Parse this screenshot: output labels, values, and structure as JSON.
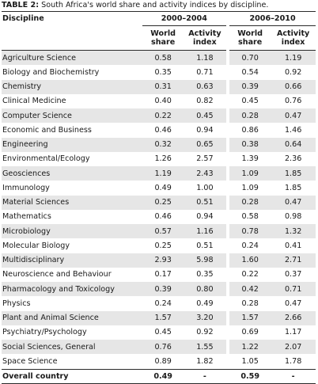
{
  "caption": {
    "label": "TABLE 2:",
    "text": " South Africa's world share and activity indices by discipline."
  },
  "header": {
    "discipline": "Discipline",
    "period1": "2000–2004",
    "period2": "2006–2010",
    "world_share": "World share",
    "activity_index": "Activity index"
  },
  "rows": [
    {
      "discipline": "Agriculture Science",
      "ws1": "0.58",
      "ai1": "1.18",
      "ws2": "0.70",
      "ai2": "1.19"
    },
    {
      "discipline": "Biology and Biochemistry",
      "ws1": "0.35",
      "ai1": "0.71",
      "ws2": "0.54",
      "ai2": "0.92"
    },
    {
      "discipline": "Chemistry",
      "ws1": "0.31",
      "ai1": "0.63",
      "ws2": "0.39",
      "ai2": "0.66"
    },
    {
      "discipline": "Clinical Medicine",
      "ws1": "0.40",
      "ai1": "0.82",
      "ws2": "0.45",
      "ai2": "0.76"
    },
    {
      "discipline": "Computer Science",
      "ws1": "0.22",
      "ai1": "0.45",
      "ws2": "0.28",
      "ai2": "0.47"
    },
    {
      "discipline": "Economic and Business",
      "ws1": "0.46",
      "ai1": "0.94",
      "ws2": "0.86",
      "ai2": "1.46"
    },
    {
      "discipline": "Engineering",
      "ws1": "0.32",
      "ai1": "0.65",
      "ws2": "0.38",
      "ai2": "0.64"
    },
    {
      "discipline": "Environmental/Ecology",
      "ws1": "1.26",
      "ai1": "2.57",
      "ws2": "1.39",
      "ai2": "2.36"
    },
    {
      "discipline": "Geosciences",
      "ws1": "1.19",
      "ai1": "2.43",
      "ws2": "1.09",
      "ai2": "1.85"
    },
    {
      "discipline": "Immunology",
      "ws1": "0.49",
      "ai1": "1.00",
      "ws2": "1.09",
      "ai2": "1.85"
    },
    {
      "discipline": "Material Sciences",
      "ws1": "0.25",
      "ai1": "0.51",
      "ws2": "0.28",
      "ai2": "0.47"
    },
    {
      "discipline": "Mathematics",
      "ws1": "0.46",
      "ai1": "0.94",
      "ws2": "0.58",
      "ai2": "0.98"
    },
    {
      "discipline": "Microbiology",
      "ws1": "0.57",
      "ai1": "1.16",
      "ws2": "0.78",
      "ai2": "1.32"
    },
    {
      "discipline": "Molecular Biology",
      "ws1": "0.25",
      "ai1": "0.51",
      "ws2": "0.24",
      "ai2": "0.41"
    },
    {
      "discipline": "Multidisciplinary",
      "ws1": "2.93",
      "ai1": "5.98",
      "ws2": "1.60",
      "ai2": "2.71"
    },
    {
      "discipline": "Neuroscience and Behaviour",
      "ws1": "0.17",
      "ai1": "0.35",
      "ws2": "0.22",
      "ai2": "0.37"
    },
    {
      "discipline": "Pharmacology and Toxicology",
      "ws1": "0.39",
      "ai1": "0.80",
      "ws2": "0.42",
      "ai2": "0.71"
    },
    {
      "discipline": "Physics",
      "ws1": "0.24",
      "ai1": "0.49",
      "ws2": "0.28",
      "ai2": "0.47"
    },
    {
      "discipline": "Plant and Animal Science",
      "ws1": "1.57",
      "ai1": "3.20",
      "ws2": "1.57",
      "ai2": "2.66"
    },
    {
      "discipline": "Psychiatry/Psychology",
      "ws1": "0.45",
      "ai1": "0.92",
      "ws2": "0.69",
      "ai2": "1.17"
    },
    {
      "discipline": "Social Sciences, General",
      "ws1": "0.76",
      "ai1": "1.55",
      "ws2": "1.22",
      "ai2": "2.07"
    },
    {
      "discipline": "Space Science",
      "ws1": "0.89",
      "ai1": "1.82",
      "ws2": "1.05",
      "ai2": "1.78"
    }
  ],
  "overall": {
    "discipline": "Overall country",
    "ws1": "0.49",
    "ai1": "-",
    "ws2": "0.59",
    "ai2": "-"
  }
}
